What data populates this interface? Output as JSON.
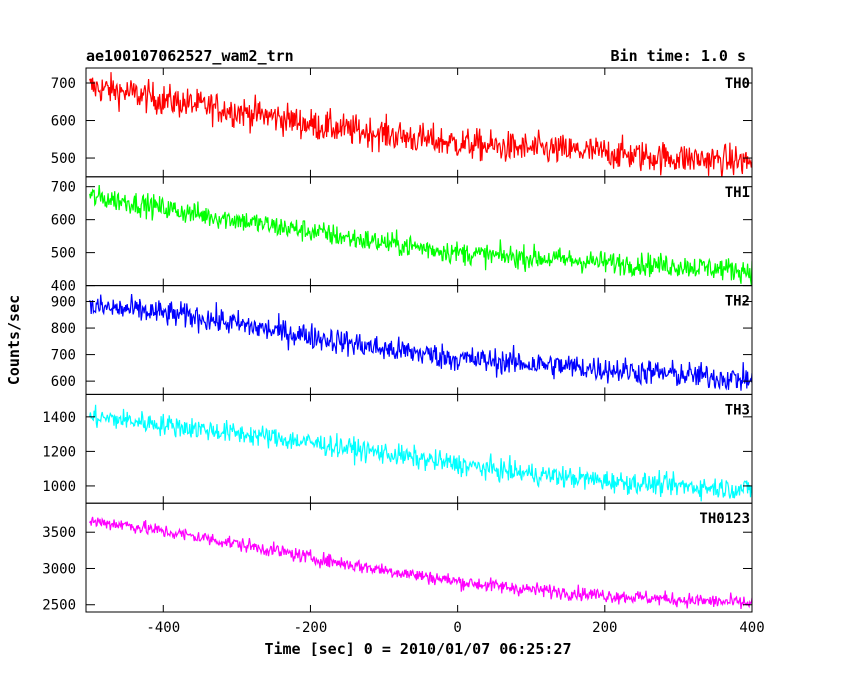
{
  "chart_data": {
    "type": "line",
    "title_left": "ae100107062527_wam2_trn",
    "title_right": "Bin time: 1.0 s",
    "xlabel": "Time [sec] 0 = 2010/01/07 06:25:27",
    "ylabel": "Counts/sec",
    "xlim": [
      -505,
      400
    ],
    "xticks": [
      -400,
      -200,
      0,
      200,
      400
    ],
    "grid": false,
    "panels": [
      {
        "name": "TH0",
        "color": "#ff0000",
        "ylim": [
          450,
          740
        ],
        "yticks": [
          500,
          600,
          700
        ],
        "x": [
          -500,
          -450,
          -400,
          -350,
          -300,
          -250,
          -200,
          -150,
          -100,
          -50,
          0,
          50,
          100,
          150,
          200,
          250,
          300,
          350,
          400
        ],
        "values": [
          690,
          675,
          655,
          640,
          625,
          610,
          590,
          575,
          565,
          550,
          540,
          530,
          525,
          520,
          515,
          505,
          500,
          495,
          490
        ],
        "noise": 30
      },
      {
        "name": "TH1",
        "color": "#00ff00",
        "ylim": [
          400,
          730
        ],
        "yticks": [
          400,
          500,
          600,
          700
        ],
        "x": [
          -500,
          -450,
          -400,
          -350,
          -300,
          -250,
          -200,
          -150,
          -100,
          -50,
          0,
          50,
          100,
          150,
          200,
          250,
          300,
          350,
          400
        ],
        "values": [
          670,
          655,
          635,
          615,
          600,
          580,
          565,
          545,
          530,
          515,
          500,
          490,
          485,
          478,
          470,
          465,
          460,
          452,
          445
        ],
        "noise": 25
      },
      {
        "name": "TH2",
        "color": "#0000ff",
        "ylim": [
          550,
          960
        ],
        "yticks": [
          600,
          700,
          800,
          900
        ],
        "x": [
          -500,
          -450,
          -400,
          -350,
          -300,
          -250,
          -200,
          -150,
          -100,
          -50,
          0,
          50,
          100,
          150,
          200,
          250,
          300,
          350,
          400
        ],
        "values": [
          880,
          870,
          855,
          840,
          815,
          790,
          770,
          745,
          720,
          705,
          685,
          675,
          665,
          655,
          645,
          635,
          625,
          615,
          605
        ],
        "noise": 35
      },
      {
        "name": "TH3",
        "color": "#00ffff",
        "ylim": [
          900,
          1530
        ],
        "yticks": [
          1000,
          1200,
          1400
        ],
        "x": [
          -500,
          -450,
          -400,
          -350,
          -300,
          -250,
          -200,
          -150,
          -100,
          -50,
          0,
          50,
          100,
          150,
          200,
          250,
          300,
          350,
          400
        ],
        "values": [
          1400,
          1380,
          1355,
          1330,
          1305,
          1280,
          1250,
          1220,
          1190,
          1155,
          1125,
          1095,
          1070,
          1050,
          1030,
          1015,
          1000,
          990,
          980
        ],
        "noise": 45
      },
      {
        "name": "TH0123",
        "color": "#ff00ff",
        "ylim": [
          2400,
          3900
        ],
        "yticks": [
          2500,
          3000,
          3500
        ],
        "x": [
          -500,
          -450,
          -400,
          -350,
          -300,
          -250,
          -200,
          -150,
          -100,
          -50,
          0,
          50,
          100,
          150,
          200,
          250,
          300,
          350,
          400
        ],
        "values": [
          3650,
          3600,
          3510,
          3430,
          3340,
          3250,
          3150,
          3060,
          2980,
          2900,
          2820,
          2760,
          2710,
          2670,
          2630,
          2600,
          2570,
          2545,
          2520
        ],
        "noise": 70
      }
    ]
  }
}
